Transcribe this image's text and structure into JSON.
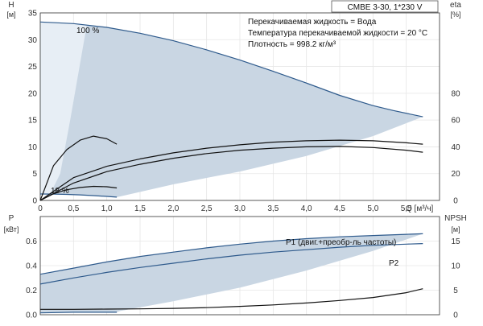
{
  "title": "CMBE 3-30, 1*230 V",
  "info": [
    "Перекачиваемая жидкость = Вода",
    "Температура перекачиваемой жидкости = 20 °C",
    "Плотность = 998.2 кг/м³"
  ],
  "colors": {
    "envelope": "#c9d6e3",
    "envelope_light": "#e7eef5",
    "curve_blue": "#2e5a8c",
    "curve_black": "#111111",
    "grid": "#e6e6e6",
    "axis": "#333333"
  },
  "chart_data": [
    {
      "type": "line",
      "panel": "upper",
      "title": "",
      "xlabel": "Q [м³/ч]",
      "ylabel": "H [м]",
      "ylabel_right": "eta [%]",
      "xlim": [
        0,
        6
      ],
      "ylim": [
        0,
        35
      ],
      "ylim_right": [
        0,
        140
      ],
      "grid": true,
      "x_ticks": [
        "0",
        "0,5",
        "1,0",
        "1,5",
        "2,0",
        "2,5",
        "3,0",
        "3,5",
        "4,0",
        "4,5",
        "5,0",
        "5,5"
      ],
      "y_ticks": [
        "0",
        "5",
        "10",
        "15",
        "20",
        "25",
        "30",
        "35"
      ],
      "y_ticks_right": [
        "0",
        "20",
        "40",
        "60",
        "80"
      ],
      "annotations": [
        "100 %",
        "18 %"
      ],
      "series": [
        {
          "name": "100 %",
          "axis": "left",
          "color": "#2e5a8c",
          "x": [
            0,
            0.5,
            1.0,
            1.5,
            2.0,
            2.5,
            3.0,
            3.5,
            4.0,
            4.5,
            5.0,
            5.3,
            5.75
          ],
          "y": [
            33.3,
            33.0,
            32.3,
            31.2,
            29.8,
            28.1,
            26.2,
            24.1,
            21.9,
            19.6,
            17.7,
            16.8,
            15.6
          ]
        },
        {
          "axis": "left",
          "color": "#2e5a8c",
          "x": [
            0,
            0.2,
            0.4,
            0.6,
            0.8,
            1.0,
            1.15
          ],
          "y": [
            1.2,
            1.18,
            1.12,
            1.03,
            0.9,
            0.75,
            0.62
          ]
        },
        {
          "axis": "right",
          "color": "#111111",
          "x": [
            0,
            0.5,
            1.0,
            1.5,
            2.0,
            2.5,
            3.0,
            3.5,
            4.0,
            4.5,
            5.0,
            5.5,
            5.75
          ],
          "y": [
            0,
            17,
            25.5,
            31,
            35.5,
            39,
            41.5,
            43.5,
            44.5,
            45,
            44.5,
            43,
            42
          ]
        },
        {
          "axis": "right",
          "color": "#111111",
          "x": [
            0,
            0.5,
            1.0,
            1.5,
            2.0,
            2.5,
            3.0,
            3.5,
            4.0,
            4.5,
            5.0,
            5.5,
            5.75
          ],
          "y": [
            0,
            13,
            21.5,
            27,
            31.5,
            35,
            37.5,
            39,
            40,
            40.3,
            39.5,
            37.5,
            36
          ]
        },
        {
          "axis": "right",
          "color": "#111111",
          "x": [
            0,
            0.2,
            0.4,
            0.6,
            0.8,
            1.0,
            1.15
          ],
          "y": [
            0,
            26,
            38,
            45,
            48,
            46,
            42
          ]
        },
        {
          "axis": "right",
          "color": "#111111",
          "x": [
            0,
            0.2,
            0.4,
            0.6,
            0.8,
            1.0,
            1.15
          ],
          "y": [
            0,
            5,
            8,
            9.7,
            10.5,
            10.2,
            9.3
          ]
        }
      ]
    },
    {
      "type": "line",
      "panel": "lower",
      "title": "",
      "xlabel": "",
      "ylabel": "P [кВт]",
      "ylabel_right": "NPSH [м]",
      "xlim": [
        0,
        6
      ],
      "ylim": [
        0,
        0.8
      ],
      "ylim_right": [
        0,
        20
      ],
      "grid": true,
      "y_ticks": [
        "0.0",
        "0.2",
        "0.4",
        "0.6"
      ],
      "y_ticks_right": [
        "0",
        "5",
        "10",
        "15"
      ],
      "series": [
        {
          "name": "P1 (двиг.+преобр-ль частоты)",
          "axis": "left",
          "color": "#2e5a8c",
          "x": [
            0,
            0.5,
            1.0,
            1.5,
            2.0,
            2.5,
            3.0,
            3.5,
            4.0,
            4.5,
            5.0,
            5.5,
            5.75
          ],
          "y": [
            0.33,
            0.38,
            0.43,
            0.475,
            0.51,
            0.545,
            0.575,
            0.6,
            0.62,
            0.635,
            0.645,
            0.655,
            0.66
          ]
        },
        {
          "name": "P2",
          "axis": "left",
          "color": "#2e5a8c",
          "x": [
            0,
            0.5,
            1.0,
            1.5,
            2.0,
            2.5,
            3.0,
            3.5,
            4.0,
            4.5,
            5.0,
            5.5,
            5.75
          ],
          "y": [
            0.25,
            0.3,
            0.345,
            0.385,
            0.42,
            0.455,
            0.485,
            0.51,
            0.53,
            0.55,
            0.565,
            0.575,
            0.58
          ]
        },
        {
          "axis": "left",
          "color": "#2e5a8c",
          "x": [
            0,
            0.5,
            1.15
          ],
          "y": [
            0.015,
            0.02,
            0.02
          ]
        },
        {
          "axis": "right",
          "color": "#111111",
          "x": [
            0,
            0.5,
            1.0,
            1.5,
            2.0,
            2.5,
            3.0,
            3.5,
            4.0,
            4.5,
            5.0,
            5.5,
            5.75
          ],
          "y": [
            1.1,
            1.1,
            1.15,
            1.2,
            1.3,
            1.45,
            1.7,
            2.0,
            2.4,
            2.9,
            3.5,
            4.5,
            5.3
          ]
        }
      ]
    }
  ]
}
